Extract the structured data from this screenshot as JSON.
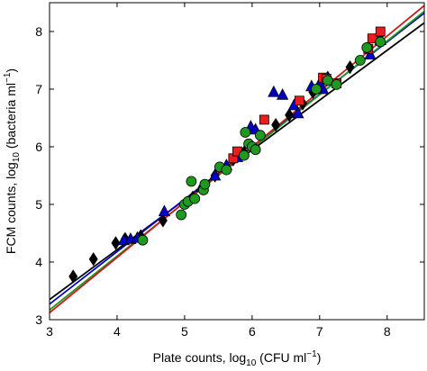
{
  "chart_data": {
    "type": "scatter",
    "title": "",
    "xlabel": {
      "main": "Plate counts, log",
      "sub": "10",
      "rest": " (CFU ml",
      "sup": "−1",
      "end": ")"
    },
    "ylabel": {
      "main": "FCM counts, log",
      "sub": "10",
      "rest": " (bacteria ml",
      "sup": "−1",
      "end": ")"
    },
    "xlim": [
      3,
      8.55
    ],
    "ylim": [
      3,
      8.5
    ],
    "xticks": [
      "3",
      "4",
      "5",
      "6",
      "7",
      "8"
    ],
    "yticks": [
      "3",
      "4",
      "5",
      "6",
      "7",
      "8"
    ],
    "grid": false,
    "legend": "none",
    "series": [
      {
        "marker": "diamond",
        "color": "#000000",
        "points": [
          [
            3.35,
            3.75
          ],
          [
            3.65,
            4.05
          ],
          [
            3.98,
            4.33
          ],
          [
            4.12,
            4.4
          ],
          [
            4.35,
            4.45
          ],
          [
            4.68,
            4.72
          ],
          [
            5.12,
            5.12
          ],
          [
            5.3,
            5.32
          ],
          [
            5.45,
            5.5
          ],
          [
            5.72,
            5.78
          ],
          [
            5.88,
            5.9
          ],
          [
            6.35,
            6.38
          ],
          [
            6.55,
            6.55
          ],
          [
            6.75,
            6.75
          ],
          [
            6.9,
            6.95
          ],
          [
            7.02,
            7.03
          ],
          [
            7.12,
            7.2
          ],
          [
            7.45,
            7.38
          ],
          [
            7.72,
            7.72
          ],
          [
            7.9,
            7.95
          ]
        ]
      },
      {
        "marker": "triangle",
        "color": "#0000cc",
        "points": [
          [
            4.1,
            4.38
          ],
          [
            4.2,
            4.4
          ],
          [
            4.3,
            4.42
          ],
          [
            4.7,
            4.88
          ],
          [
            5.25,
            5.3
          ],
          [
            5.45,
            5.5
          ],
          [
            5.62,
            5.68
          ],
          [
            5.78,
            5.82
          ],
          [
            5.98,
            6.35
          ],
          [
            6.05,
            6.3
          ],
          [
            6.32,
            6.95
          ],
          [
            6.45,
            6.9
          ],
          [
            6.62,
            6.72
          ],
          [
            6.68,
            6.58
          ],
          [
            6.88,
            7.05
          ],
          [
            7.0,
            7.1
          ],
          [
            7.05,
            7.0
          ],
          [
            7.75,
            7.6
          ],
          [
            7.9,
            7.85
          ]
        ]
      },
      {
        "marker": "square",
        "color": "#ee1c1c",
        "points": [
          [
            5.72,
            5.8
          ],
          [
            5.78,
            5.92
          ],
          [
            6.18,
            6.47
          ],
          [
            6.7,
            6.8
          ],
          [
            7.05,
            7.2
          ],
          [
            7.1,
            7.18
          ],
          [
            7.25,
            7.1
          ],
          [
            7.72,
            7.7
          ],
          [
            7.78,
            7.88
          ],
          [
            7.9,
            8.0
          ]
        ]
      },
      {
        "marker": "circle",
        "color": "#1e9a1e",
        "points": [
          [
            4.38,
            4.38
          ],
          [
            4.95,
            4.82
          ],
          [
            5.0,
            5.0
          ],
          [
            5.05,
            5.05
          ],
          [
            5.1,
            5.4
          ],
          [
            5.15,
            5.1
          ],
          [
            5.28,
            5.25
          ],
          [
            5.3,
            5.35
          ],
          [
            5.52,
            5.65
          ],
          [
            5.62,
            5.6
          ],
          [
            5.88,
            5.85
          ],
          [
            5.9,
            6.25
          ],
          [
            5.95,
            6.05
          ],
          [
            6.0,
            6.0
          ],
          [
            6.05,
            5.95
          ],
          [
            6.12,
            6.2
          ],
          [
            6.95,
            7.0
          ],
          [
            7.12,
            7.15
          ],
          [
            7.25,
            7.08
          ],
          [
            7.6,
            7.5
          ],
          [
            7.7,
            7.72
          ],
          [
            7.9,
            7.82
          ]
        ]
      }
    ],
    "fit_lines": [
      {
        "color": "#000000",
        "x": [
          3,
          8.55
        ],
        "y": [
          3.35,
          8.15
        ]
      },
      {
        "color": "#0000cc",
        "x": [
          3,
          8.55
        ],
        "y": [
          3.27,
          8.32
        ]
      },
      {
        "color": "#1e9a1e",
        "x": [
          3,
          8.55
        ],
        "y": [
          3.17,
          8.35
        ]
      },
      {
        "color": "#cc1a1a",
        "x": [
          3,
          8.55
        ],
        "y": [
          3.12,
          8.45
        ]
      }
    ]
  }
}
